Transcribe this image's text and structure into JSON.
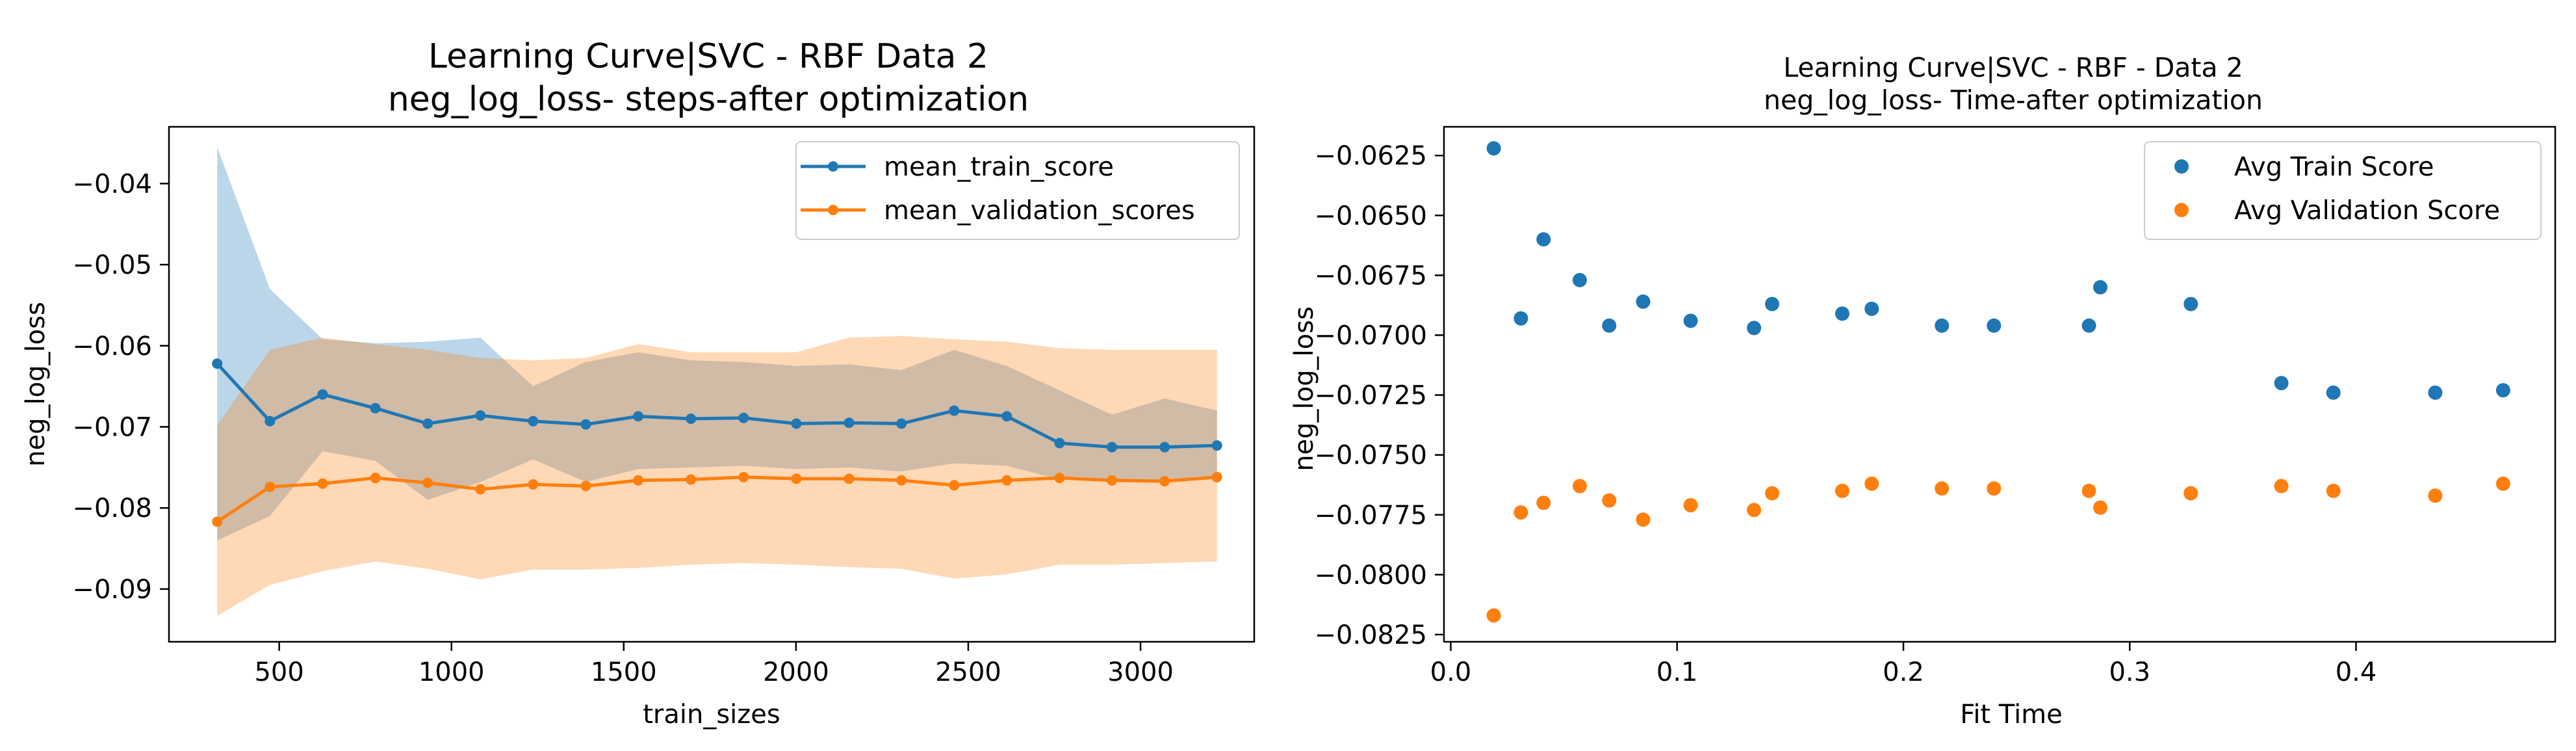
{
  "colors": {
    "train": "#1f77b4",
    "validation": "#ff7f0e"
  },
  "chart_data": [
    {
      "type": "line",
      "title": "Learning Curve|SVC -     RBF       Data 2",
      "subtitle": "neg_log_loss- steps-after optimization",
      "xlabel": "train_sizes",
      "ylabel": "neg_log_loss",
      "xlim": [
        180,
        3330
      ],
      "ylim": [
        -0.0965,
        -0.033
      ],
      "xticks": [
        500,
        1000,
        1500,
        2000,
        2500,
        3000
      ],
      "yticks": [
        -0.09,
        -0.08,
        -0.07,
        -0.06,
        -0.05,
        -0.04
      ],
      "grid": false,
      "legend": "top-right",
      "x": [
        320,
        473,
        626,
        779,
        931,
        1084,
        1237,
        1390,
        1542,
        1695,
        1848,
        2001,
        2154,
        2306,
        2459,
        2612,
        2765,
        2917,
        3070,
        3222
      ],
      "series": [
        {
          "name": "mean_train_score",
          "color": "#1f77b4",
          "values": [
            -0.0622,
            -0.0693,
            -0.066,
            -0.0677,
            -0.0696,
            -0.0686,
            -0.0693,
            -0.0697,
            -0.0687,
            -0.069,
            -0.0689,
            -0.0696,
            -0.0695,
            -0.0696,
            -0.068,
            -0.0687,
            -0.072,
            -0.0725,
            -0.0725,
            -0.0723
          ],
          "band_upper": [
            -0.0355,
            -0.053,
            -0.0592,
            -0.0597,
            -0.0595,
            -0.059,
            -0.065,
            -0.062,
            -0.0608,
            -0.0618,
            -0.062,
            -0.0625,
            -0.0623,
            -0.063,
            -0.0605,
            -0.0625,
            -0.0655,
            -0.0685,
            -0.0665,
            -0.068
          ],
          "band_lower": [
            -0.084,
            -0.081,
            -0.073,
            -0.0742,
            -0.079,
            -0.0768,
            -0.074,
            -0.0768,
            -0.0752,
            -0.075,
            -0.0748,
            -0.0752,
            -0.075,
            -0.0755,
            -0.0745,
            -0.0748,
            -0.0765,
            -0.0765,
            -0.0765,
            -0.0762
          ]
        },
        {
          "name": "mean_validation_scores",
          "color": "#ff7f0e",
          "values": [
            -0.0817,
            -0.0774,
            -0.077,
            -0.0763,
            -0.0769,
            -0.0777,
            -0.0771,
            -0.0773,
            -0.0766,
            -0.0765,
            -0.0762,
            -0.0764,
            -0.0764,
            -0.0766,
            -0.0772,
            -0.0766,
            -0.0763,
            -0.0766,
            -0.0767,
            -0.0762
          ],
          "band_upper": [
            -0.0698,
            -0.0605,
            -0.059,
            -0.0598,
            -0.0605,
            -0.0615,
            -0.0618,
            -0.0615,
            -0.0598,
            -0.0608,
            -0.0608,
            -0.0608,
            -0.059,
            -0.0588,
            -0.0592,
            -0.0595,
            -0.0603,
            -0.0605,
            -0.0605,
            -0.0605
          ],
          "band_lower": [
            -0.0933,
            -0.0895,
            -0.0878,
            -0.0866,
            -0.0875,
            -0.0888,
            -0.0876,
            -0.0876,
            -0.0874,
            -0.087,
            -0.0868,
            -0.087,
            -0.0873,
            -0.0875,
            -0.0887,
            -0.0882,
            -0.087,
            -0.087,
            -0.0868,
            -0.0866
          ]
        }
      ]
    },
    {
      "type": "scatter",
      "title": "Learning Curve|SVC -    RBF    - Data 2",
      "subtitle": "neg_log_loss- Time-after optimization",
      "xlabel": "Fit Time",
      "ylabel": "neg_log_loss",
      "xlim": [
        -0.003,
        0.488
      ],
      "ylim": [
        -0.0828,
        -0.0613
      ],
      "xticks": [
        0.0,
        0.1,
        0.2,
        0.3,
        0.4
      ],
      "xtick_labels": [
        "0.0",
        "0.1",
        "0.2",
        "0.3",
        "0.4"
      ],
      "yticks": [
        -0.0825,
        -0.08,
        -0.0775,
        -0.075,
        -0.0725,
        -0.07,
        -0.0675,
        -0.065,
        -0.0625
      ],
      "ytick_labels": [
        "−0.0825",
        "−0.0800",
        "−0.0775",
        "−0.0750",
        "−0.0725",
        "−0.0700",
        "−0.0675",
        "−0.0650",
        "−0.0625"
      ],
      "grid": false,
      "legend": "top-right",
      "series": [
        {
          "name": "Avg Train Score",
          "color": "#1f77b4",
          "x": [
            0.019,
            0.031,
            0.041,
            0.057,
            0.07,
            0.085,
            0.106,
            0.134,
            0.142,
            0.173,
            0.186,
            0.217,
            0.24,
            0.282,
            0.287,
            0.327,
            0.367,
            0.39,
            0.435,
            0.465
          ],
          "y": [
            -0.0622,
            -0.0693,
            -0.066,
            -0.0677,
            -0.0696,
            -0.0686,
            -0.0694,
            -0.0697,
            -0.0687,
            -0.0691,
            -0.0689,
            -0.0696,
            -0.0696,
            -0.0696,
            -0.068,
            -0.0687,
            -0.072,
            -0.0724,
            -0.0724,
            -0.0723
          ]
        },
        {
          "name": "Avg Validation Score",
          "color": "#ff7f0e",
          "x": [
            0.019,
            0.031,
            0.041,
            0.057,
            0.07,
            0.085,
            0.106,
            0.134,
            0.142,
            0.173,
            0.186,
            0.217,
            0.24,
            0.282,
            0.287,
            0.327,
            0.367,
            0.39,
            0.435,
            0.465
          ],
          "y": [
            -0.0817,
            -0.0774,
            -0.077,
            -0.0763,
            -0.0769,
            -0.0777,
            -0.0771,
            -0.0773,
            -0.0766,
            -0.0765,
            -0.0762,
            -0.0764,
            -0.0764,
            -0.0765,
            -0.0772,
            -0.0766,
            -0.0763,
            -0.0765,
            -0.0767,
            -0.0762
          ]
        }
      ]
    }
  ]
}
